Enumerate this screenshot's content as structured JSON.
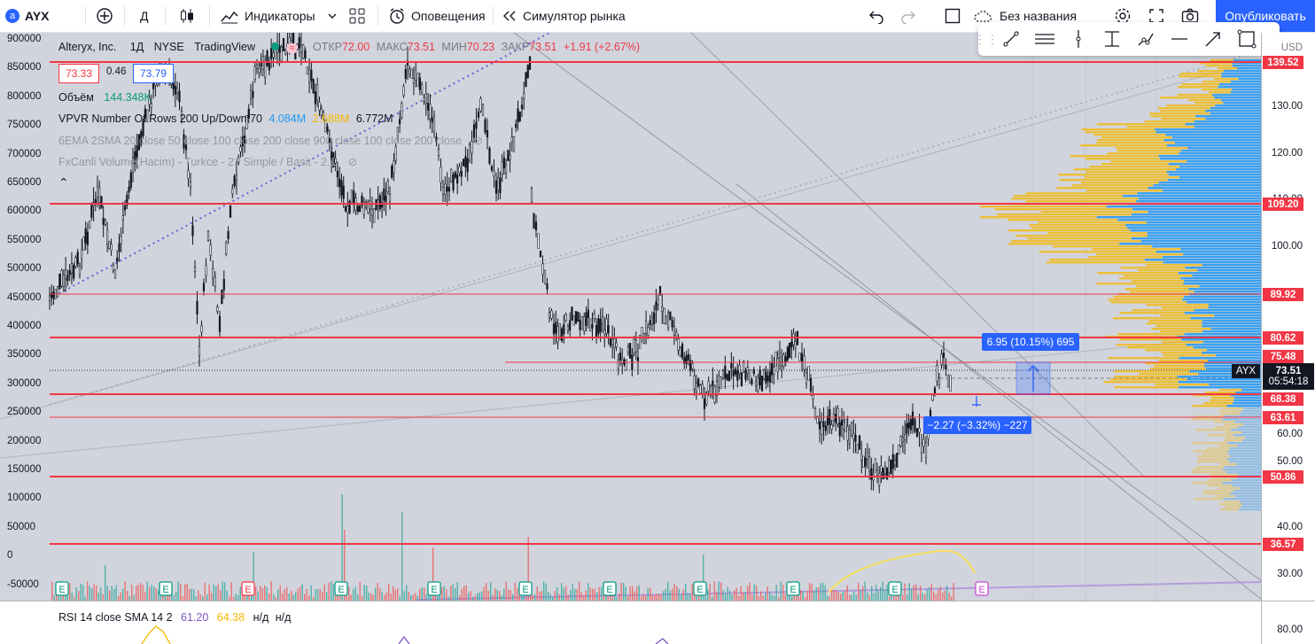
{
  "toolbar": {
    "symbol": "AYX",
    "symbol_badge": "a",
    "interval": "Д",
    "indicators": "Индикаторы",
    "alerts": "Оповещения",
    "replay": "Симулятор рынка",
    "layout_name": "Без названия",
    "publish": "Опубликовать"
  },
  "legend": {
    "title": "Alteryx, Inc.",
    "interval": "1Д",
    "exchange": "NYSE",
    "source": "TradingView",
    "open_label": "ОТКР",
    "open": "72.00",
    "high_label": "МАКС",
    "high": "73.51",
    "low_label": "МИН",
    "low": "70.23",
    "close_label": "ЗАКР",
    "close": "73.51",
    "change": "+1.91 (+2.67%)",
    "bid": "73.33",
    "spread": "0.46",
    "ask": "73.79",
    "volume_label": "Объём",
    "volume": "144.348K",
    "vpvr_label": "VPVR Number Of Rows 200 Up/Down 70",
    "vpvr_up": "4.084M",
    "vpvr_down": "2.688M",
    "vpvr_total": "6.772M",
    "ema_label": "6EMA 2SMA 20 close 50 close 100 close 200 close 900 close 100 close 200 close",
    "fx_label": "FxCanli Volume(Hacim) - Turkce - 21 Simple / Basit - 2.1"
  },
  "left_scale": [
    "900000",
    "850000",
    "800000",
    "750000",
    "700000",
    "650000",
    "600000",
    "550000",
    "500000",
    "450000",
    "400000",
    "350000",
    "300000",
    "250000",
    "200000",
    "150000",
    "100000",
    "50000",
    "0",
    "-50000"
  ],
  "right_scale": {
    "currency": "USD",
    "ticks": [
      "130.00",
      "120.00",
      "110.00",
      "100.00",
      "60.00",
      "50.00",
      "40.00",
      "30.00"
    ],
    "levels": [
      "139.52",
      "109.20",
      "89.92",
      "80.62",
      "75.48",
      "68.38",
      "63.61",
      "50.86",
      "36.57"
    ],
    "symbol_tag": "AYX",
    "last_price": "73.51",
    "countdown": "05:54:18"
  },
  "measures": {
    "up": "6.95 (10.15%) 695",
    "down": "−2.27 (−3.32%) −227"
  },
  "earnings_marker": "E",
  "rsi": {
    "label": "RSI 14 close SMA 14 2",
    "value1": "61.20",
    "value2": "64.38",
    "na1": "н/д",
    "na2": "н/д",
    "scale_tick": "80.00"
  }
}
